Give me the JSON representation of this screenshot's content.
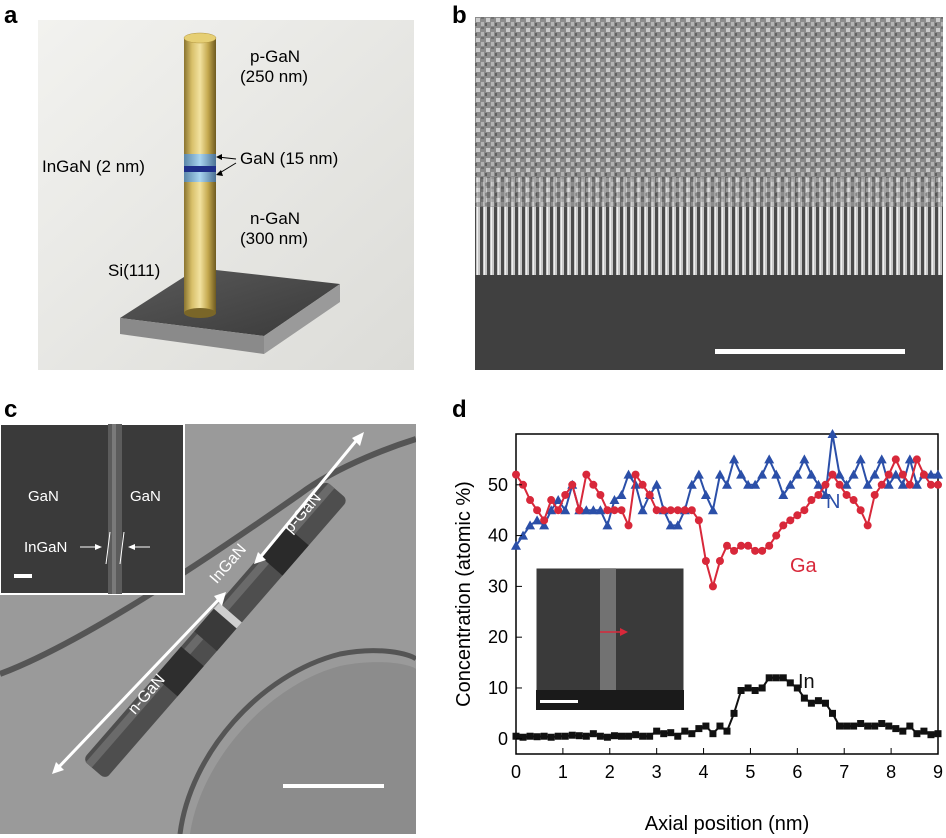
{
  "panels": {
    "a": {
      "letter": "a",
      "labels": {
        "p_gan": "p-GaN",
        "p_gan_thickness": "(250 nm)",
        "gan": "GaN (15 nm)",
        "ingan": "InGaN (2 nm)",
        "n_gan": "n-GaN",
        "n_gan_thickness": "(300 nm)",
        "substrate": "Si(111)"
      }
    },
    "b": {
      "letter": "b"
    },
    "c": {
      "letter": "c",
      "inset_labels": {
        "gan_left": "GaN",
        "gan_right": "GaN",
        "ingan": "InGaN"
      },
      "labels": {
        "p_gan": "p-GaN",
        "ingan": "InGaN",
        "n_gan": "n-GaN"
      }
    },
    "d": {
      "letter": "d"
    }
  },
  "chart_data": {
    "type": "line",
    "xlabel": "Axial position (nm)",
    "ylabel": "Concentration (atomic %)",
    "xlim": [
      0,
      9
    ],
    "ylim": [
      -3,
      60
    ],
    "x_ticks": [
      "0",
      "1",
      "2",
      "3",
      "4",
      "5",
      "6",
      "7",
      "8",
      "9"
    ],
    "y_ticks": [
      "0",
      "10",
      "20",
      "30",
      "40",
      "50"
    ],
    "x_tick_values": [
      0,
      1,
      2,
      3,
      4,
      5,
      6,
      7,
      8,
      9
    ],
    "y_tick_values": [
      0,
      10,
      20,
      30,
      40,
      50
    ],
    "series": [
      {
        "name": "N",
        "color": "#2b4fa8",
        "marker": "triangle",
        "x": [
          0,
          0.15,
          0.3,
          0.45,
          0.6,
          0.75,
          0.9,
          1.05,
          1.2,
          1.35,
          1.5,
          1.65,
          1.8,
          1.95,
          2.1,
          2.25,
          2.4,
          2.55,
          2.7,
          2.85,
          3.0,
          3.15,
          3.3,
          3.45,
          3.6,
          3.75,
          3.9,
          4.05,
          4.2,
          4.35,
          4.5,
          4.65,
          4.8,
          4.95,
          5.1,
          5.25,
          5.4,
          5.55,
          5.7,
          5.85,
          6.0,
          6.15,
          6.3,
          6.45,
          6.6,
          6.75,
          6.9,
          7.05,
          7.2,
          7.35,
          7.5,
          7.65,
          7.8,
          7.95,
          8.1,
          8.25,
          8.4,
          8.55,
          8.7,
          8.85,
          9.0
        ],
        "values": [
          38,
          40,
          42,
          43,
          42,
          45,
          47,
          45,
          50,
          45,
          45,
          45,
          45,
          42,
          47,
          48,
          52,
          50,
          45,
          48,
          50,
          45,
          42,
          42,
          45,
          50,
          52,
          48,
          45,
          52,
          50,
          55,
          52,
          50,
          50,
          52,
          55,
          52,
          48,
          50,
          52,
          55,
          52,
          50,
          48,
          60,
          52,
          50,
          52,
          55,
          50,
          52,
          55,
          50,
          52,
          50,
          55,
          50,
          52,
          52,
          52
        ]
      },
      {
        "name": "Ga",
        "color": "#d8283a",
        "marker": "circle",
        "x": [
          0,
          0.15,
          0.3,
          0.45,
          0.6,
          0.75,
          0.9,
          1.05,
          1.2,
          1.35,
          1.5,
          1.65,
          1.8,
          1.95,
          2.1,
          2.25,
          2.4,
          2.55,
          2.7,
          2.85,
          3.0,
          3.15,
          3.3,
          3.45,
          3.6,
          3.75,
          3.9,
          4.05,
          4.2,
          4.35,
          4.5,
          4.65,
          4.8,
          4.95,
          5.1,
          5.25,
          5.4,
          5.55,
          5.7,
          5.85,
          6.0,
          6.15,
          6.3,
          6.45,
          6.6,
          6.75,
          6.9,
          7.05,
          7.2,
          7.35,
          7.5,
          7.65,
          7.8,
          7.95,
          8.1,
          8.25,
          8.4,
          8.55,
          8.7,
          8.85,
          9.0
        ],
        "values": [
          52,
          50,
          47,
          45,
          43,
          47,
          45,
          48,
          50,
          45,
          52,
          50,
          48,
          45,
          45,
          45,
          42,
          52,
          50,
          48,
          45,
          45,
          45,
          45,
          45,
          45,
          43,
          35,
          30,
          35,
          38,
          37,
          38,
          38,
          37,
          37,
          38,
          40,
          42,
          43,
          44,
          45,
          47,
          48,
          50,
          52,
          50,
          48,
          47,
          45,
          42,
          48,
          50,
          52,
          55,
          52,
          50,
          55,
          52,
          50,
          50
        ]
      },
      {
        "name": "In",
        "color": "#111111",
        "marker": "square",
        "x": [
          0,
          0.15,
          0.3,
          0.45,
          0.6,
          0.75,
          0.9,
          1.05,
          1.2,
          1.35,
          1.5,
          1.65,
          1.8,
          1.95,
          2.1,
          2.25,
          2.4,
          2.55,
          2.7,
          2.85,
          3.0,
          3.15,
          3.3,
          3.45,
          3.6,
          3.75,
          3.9,
          4.05,
          4.2,
          4.35,
          4.5,
          4.65,
          4.8,
          4.95,
          5.1,
          5.25,
          5.4,
          5.55,
          5.7,
          5.85,
          6.0,
          6.15,
          6.3,
          6.45,
          6.6,
          6.75,
          6.9,
          7.05,
          7.2,
          7.35,
          7.5,
          7.65,
          7.8,
          7.95,
          8.1,
          8.25,
          8.4,
          8.55,
          8.7,
          8.85,
          9.0
        ],
        "values": [
          0.5,
          0.3,
          0.5,
          0.4,
          0.5,
          0.3,
          0.5,
          0.5,
          0.7,
          0.6,
          0.5,
          1.0,
          0.5,
          0.3,
          0.6,
          0.5,
          0.5,
          0.8,
          0.5,
          0.5,
          1.5,
          1.0,
          1.2,
          0.5,
          1.5,
          1.0,
          2.0,
          2.5,
          1.0,
          2.5,
          1.5,
          5.0,
          9.5,
          10.0,
          9.5,
          10.0,
          12.0,
          12.0,
          12.0,
          11.0,
          10.0,
          8.0,
          7.0,
          7.5,
          7.0,
          5.0,
          2.5,
          2.5,
          2.5,
          3.0,
          2.5,
          2.5,
          3.0,
          2.5,
          2.0,
          1.5,
          2.5,
          1.0,
          1.5,
          0.8,
          1.0
        ]
      }
    ],
    "annotations": {
      "N": "N",
      "Ga": "Ga",
      "In": "In"
    }
  }
}
